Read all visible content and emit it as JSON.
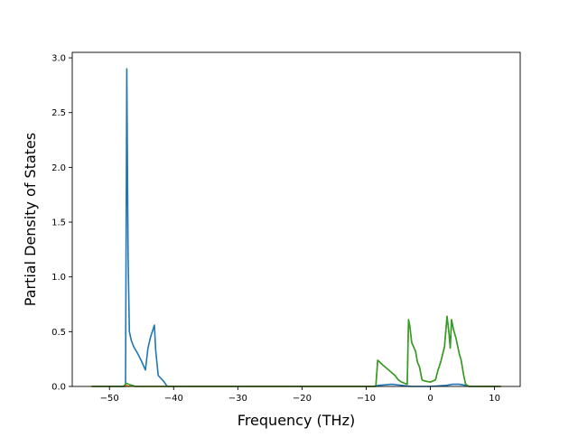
{
  "chart_data": {
    "type": "line",
    "title": "",
    "xlabel": "Frequency (THz)",
    "ylabel": "Partial Density of States",
    "xlim": [
      -55.8,
      14.0
    ],
    "ylim": [
      0.0,
      3.05
    ],
    "xticks": [
      -50,
      -40,
      -30,
      -20,
      -10,
      0,
      10
    ],
    "xtick_labels": [
      "−50",
      "−40",
      "−30",
      "−20",
      "−10",
      "0",
      "10"
    ],
    "yticks": [
      0.0,
      0.5,
      1.0,
      1.5,
      2.0,
      2.5,
      3.0
    ],
    "ytick_labels": [
      "0.0",
      "0.5",
      "1.0",
      "1.5",
      "2.0",
      "2.5",
      "3.0"
    ],
    "grid": false,
    "legend": "none",
    "series": [
      {
        "color": "#1f77b4",
        "x": [
          -52.8,
          -48.0,
          -47.8,
          -47.5,
          -47.3,
          -47.1,
          -46.9,
          -46.6,
          -46.2,
          -45.6,
          -45.0,
          -44.4,
          -44.0,
          -43.6,
          -43.0,
          -42.8,
          -42.4,
          -41.6,
          -41.0,
          -40.6,
          -9.0,
          -8.0,
          -6.0,
          -3.0,
          0.0,
          2.5,
          3.5,
          4.5,
          5.5,
          6.0,
          11.0
        ],
        "y": [
          0.0,
          0.0,
          0.0,
          0.0,
          2.9,
          1.2,
          0.5,
          0.42,
          0.36,
          0.3,
          0.23,
          0.15,
          0.35,
          0.45,
          0.56,
          0.33,
          0.1,
          0.05,
          0.0,
          0.0,
          0.0,
          0.01,
          0.02,
          0.0,
          0.0,
          0.01,
          0.02,
          0.02,
          0.01,
          0.0,
          0.0
        ]
      },
      {
        "color": "#ff7f0e",
        "x": [
          -52.8,
          -47.8,
          -47.4,
          -47.0,
          -46.5,
          -46.0,
          -45.0,
          -44.0,
          -9.0,
          -8.5,
          -8.2,
          -7.5,
          -6.5,
          -5.5,
          -5.0,
          -4.5,
          -3.6,
          -3.4,
          -3.2,
          -2.9,
          -2.6,
          -2.3,
          -2.0,
          -1.7,
          -1.3,
          -0.9,
          0.0,
          0.8,
          1.2,
          1.6,
          2.2,
          2.6,
          2.9,
          3.1,
          3.3,
          3.6,
          4.0,
          4.5,
          4.8,
          5.2,
          5.5,
          6.0,
          11.0
        ],
        "y": [
          0.0,
          0.0,
          0.01,
          0.0,
          0.01,
          0.0,
          0.0,
          0.0,
          0.0,
          0.0,
          0.24,
          0.2,
          0.15,
          0.1,
          0.06,
          0.04,
          0.02,
          0.61,
          0.55,
          0.4,
          0.36,
          0.32,
          0.22,
          0.18,
          0.06,
          0.05,
          0.04,
          0.06,
          0.15,
          0.22,
          0.36,
          0.64,
          0.49,
          0.35,
          0.61,
          0.52,
          0.44,
          0.3,
          0.24,
          0.1,
          0.02,
          0.0,
          0.0
        ]
      },
      {
        "color": "#2ca02c",
        "x": [
          -52.8,
          -47.8,
          -47.4,
          -47.0,
          -46.5,
          -46.0,
          -45.0,
          -44.0,
          -9.0,
          -8.5,
          -8.2,
          -7.5,
          -6.5,
          -5.5,
          -5.0,
          -4.5,
          -3.6,
          -3.4,
          -3.2,
          -2.9,
          -2.6,
          -2.3,
          -2.0,
          -1.7,
          -1.3,
          -0.9,
          0.0,
          0.8,
          1.2,
          1.6,
          2.2,
          2.6,
          2.9,
          3.1,
          3.3,
          3.6,
          4.0,
          4.5,
          4.8,
          5.2,
          5.5,
          6.0,
          11.0
        ],
        "y": [
          0.0,
          0.0,
          0.03,
          0.02,
          0.01,
          0.0,
          0.0,
          0.0,
          0.0,
          0.0,
          0.24,
          0.2,
          0.15,
          0.1,
          0.06,
          0.04,
          0.02,
          0.61,
          0.55,
          0.4,
          0.36,
          0.32,
          0.22,
          0.18,
          0.06,
          0.05,
          0.04,
          0.06,
          0.15,
          0.22,
          0.36,
          0.64,
          0.49,
          0.35,
          0.61,
          0.52,
          0.44,
          0.3,
          0.24,
          0.1,
          0.02,
          0.0,
          0.0
        ]
      }
    ]
  }
}
